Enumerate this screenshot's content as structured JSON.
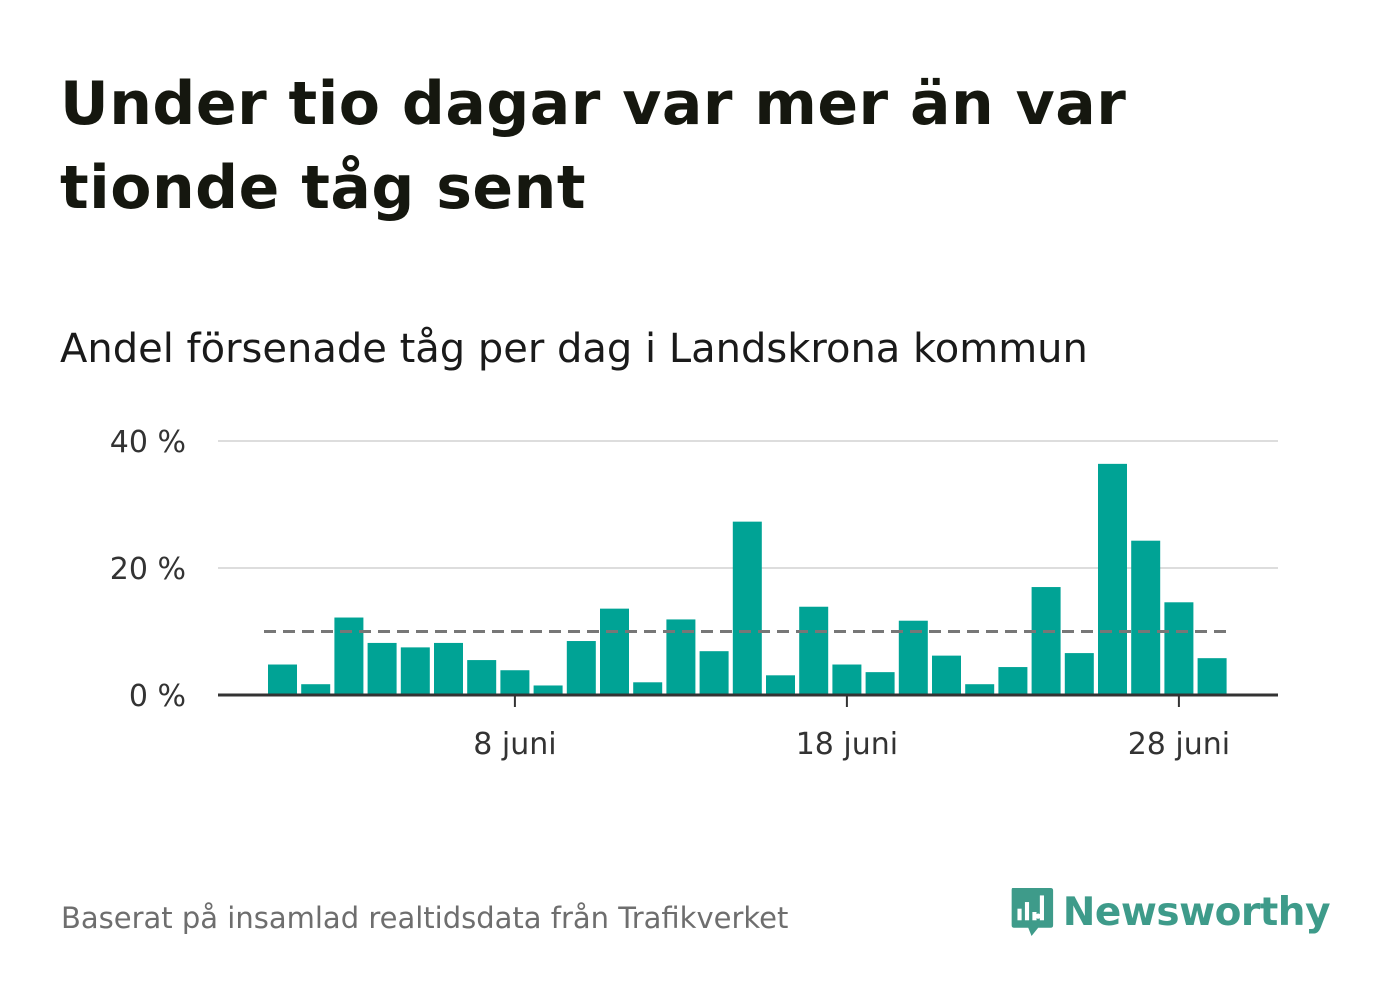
{
  "title": "Under tio dagar var mer än var tionde tåg sent",
  "subtitle": "Andel försenade tåg per dag i Landskrona kommun",
  "source": "Baserat på insamlad realtidsdata från Trafikverket",
  "brand": {
    "name": "Newsworthy",
    "icon": "newsworthy-logo-icon",
    "color": "#3e9b8a"
  },
  "colors": {
    "bar": "#00a395",
    "grid": "#dddddd",
    "reference": "#777777",
    "axis": "#333333"
  },
  "chart_data": {
    "type": "bar",
    "categories": [
      "1 juni",
      "2 juni",
      "3 juni",
      "4 juni",
      "5 juni",
      "6 juni",
      "7 juni",
      "8 juni",
      "9 juni",
      "10 juni",
      "11 juni",
      "12 juni",
      "13 juni",
      "14 juni",
      "15 juni",
      "16 juni",
      "17 juni",
      "18 juni",
      "19 juni",
      "20 juni",
      "21 juni",
      "22 juni",
      "23 juni",
      "24 juni",
      "25 juni",
      "26 juni",
      "27 juni",
      "28 juni",
      "29 juni"
    ],
    "values": [
      4.8,
      1.7,
      12.2,
      8.2,
      7.5,
      8.2,
      5.5,
      3.9,
      1.5,
      8.5,
      13.6,
      2.0,
      11.9,
      6.9,
      27.3,
      3.1,
      13.9,
      4.8,
      3.6,
      11.7,
      6.2,
      1.7,
      4.4,
      17.0,
      6.6,
      36.4,
      24.3,
      14.6,
      5.8
    ],
    "reference_line": 10,
    "ylim": [
      0,
      40
    ],
    "yticks": [
      0,
      20,
      40
    ],
    "ytick_labels": [
      "0 %",
      "20 %",
      "40 %"
    ],
    "xtick_labels": [
      {
        "index": 7,
        "label": "8 juni"
      },
      {
        "index": 17,
        "label": "18 juni"
      },
      {
        "index": 27,
        "label": "28 juni"
      }
    ],
    "grid": true,
    "legend": "none"
  }
}
